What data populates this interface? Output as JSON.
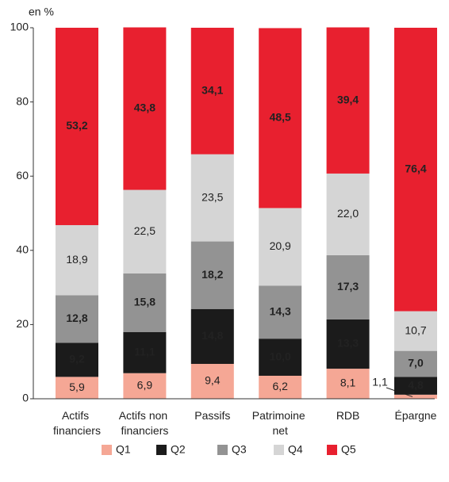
{
  "chart_data": {
    "type": "stacked-bar",
    "y_label": "en %",
    "categories": [
      "Actifs financiers",
      "Actifs non financiers",
      "Passifs",
      "Patrimoine net",
      "RDB",
      "Épargne"
    ],
    "series": [
      {
        "name": "Q1",
        "color": "#f5a795",
        "values": [
          5.9,
          6.9,
          9.4,
          6.2,
          8.1,
          1.1
        ],
        "value_labels": [
          "5,9",
          "6,9",
          "9,4",
          "6,2",
          "8,1",
          "1,1"
        ]
      },
      {
        "name": "Q2",
        "color": "#1b1b1b",
        "values": [
          9.2,
          11.1,
          14.8,
          10.0,
          13.3,
          4.8
        ],
        "value_labels": [
          "9,2",
          "11,1",
          "14,8",
          "10,0",
          "13,3",
          "4,8"
        ]
      },
      {
        "name": "Q3",
        "color": "#939393",
        "values": [
          12.8,
          15.8,
          18.2,
          14.3,
          17.3,
          7.0
        ],
        "value_labels": [
          "12,8",
          "15,8",
          "18,2",
          "14,3",
          "17,3",
          "7,0"
        ]
      },
      {
        "name": "Q4",
        "color": "#d5d5d5",
        "values": [
          18.9,
          22.5,
          23.5,
          20.9,
          22.0,
          10.7
        ],
        "value_labels": [
          "18,9",
          "22,5",
          "23,5",
          "20,9",
          "22,0",
          "10,7"
        ]
      },
      {
        "name": "Q5",
        "color": "#e8202f",
        "values": [
          53.2,
          43.8,
          34.1,
          48.5,
          39.4,
          76.4
        ],
        "value_labels": [
          "53,2",
          "43,8",
          "34,1",
          "48,5",
          "39,4",
          "76,4"
        ]
      }
    ],
    "ylim": [
      0,
      100
    ],
    "yticks": [
      0,
      20,
      40,
      60,
      80,
      100
    ],
    "grid": false,
    "legend": "bottom"
  }
}
